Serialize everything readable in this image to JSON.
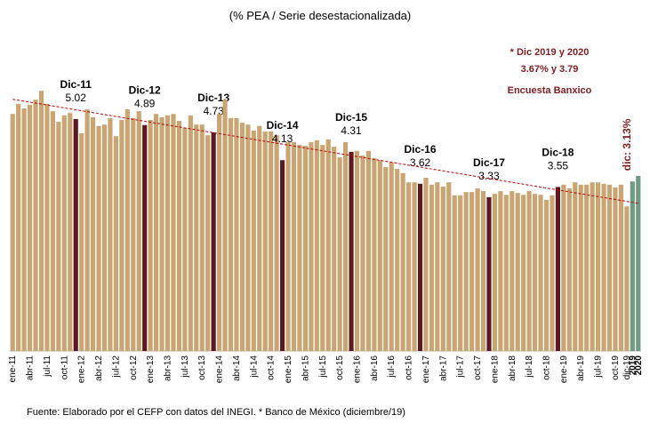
{
  "chart_data": {
    "type": "bar",
    "title": "(% PEA / Serie desestacionalizada)",
    "note": [
      "* Dic 2019 y 2020",
      "3.67% y 3.79",
      "Encuesta Banxico"
    ],
    "source": "Fuente: Elaborado por el CEFP con datos del INEGI.  * Banco de México (diciembre/19)",
    "categories": [
      "ene-11",
      null,
      null,
      "abr-11",
      null,
      null,
      "jul-11",
      null,
      null,
      "oct-11",
      null,
      null,
      "ene-12",
      null,
      null,
      "abr-12",
      null,
      null,
      "jul-12",
      null,
      null,
      "oct-12",
      null,
      null,
      "ene-13",
      null,
      null,
      "abr-13",
      null,
      null,
      "jul-13",
      null,
      null,
      "oct-13",
      null,
      null,
      "ene-14",
      null,
      null,
      "abr-14",
      null,
      null,
      "jul-14",
      null,
      null,
      "oct-14",
      null,
      null,
      "ene-15",
      null,
      null,
      "abr-15",
      null,
      null,
      "jul-15",
      null,
      null,
      "oct-15",
      null,
      null,
      "ene-16",
      null,
      null,
      "abr-16",
      null,
      null,
      "jul-16",
      null,
      null,
      "oct-16",
      null,
      null,
      "ene-17",
      null,
      null,
      "abr-17",
      null,
      null,
      "jul-17",
      null,
      null,
      "oct-17",
      null,
      null,
      "ene-18",
      null,
      null,
      "abr-18",
      null,
      null,
      "jul-18",
      null,
      null,
      "oct-18",
      null,
      null,
      "ene-19",
      null,
      null,
      "abr-19",
      null,
      null,
      "jul-19",
      null,
      null,
      "oct-19",
      null,
      "dic-19",
      "2019",
      "2020"
    ],
    "values": [
      5.13,
      5.35,
      5.25,
      5.33,
      5.44,
      5.63,
      5.35,
      5.19,
      4.96,
      5.1,
      5.15,
      5.02,
      4.71,
      5.23,
      5.06,
      4.87,
      4.9,
      5.04,
      4.65,
      5.0,
      5.23,
      5.04,
      5.19,
      4.89,
      5.0,
      5.13,
      5.06,
      5.1,
      5.13,
      4.98,
      4.83,
      5.1,
      4.9,
      4.9,
      4.67,
      4.73,
      5.13,
      5.44,
      5.04,
      5.04,
      4.94,
      4.9,
      4.77,
      4.87,
      4.75,
      4.75,
      4.67,
      4.13,
      4.52,
      4.52,
      4.46,
      4.44,
      4.52,
      4.56,
      4.46,
      4.58,
      4.42,
      4.19,
      4.52,
      4.31,
      4.33,
      4.23,
      4.33,
      4.17,
      4.13,
      3.98,
      4.08,
      3.94,
      3.85,
      3.65,
      3.65,
      3.62,
      3.75,
      3.6,
      3.65,
      3.56,
      3.65,
      3.37,
      3.37,
      3.44,
      3.44,
      3.52,
      3.46,
      3.33,
      3.4,
      3.46,
      3.38,
      3.46,
      3.42,
      3.38,
      3.46,
      3.4,
      3.38,
      3.27,
      3.37,
      3.55,
      3.6,
      3.52,
      3.65,
      3.6,
      3.6,
      3.65,
      3.65,
      3.62,
      3.6,
      3.54,
      3.6,
      3.13,
      3.67,
      3.79
    ],
    "point_names": [
      null,
      null,
      null,
      null,
      null,
      null,
      null,
      null,
      null,
      null,
      null,
      "Dic-11",
      null,
      null,
      null,
      null,
      null,
      null,
      null,
      null,
      null,
      null,
      null,
      "Dic-12",
      null,
      null,
      null,
      null,
      null,
      null,
      null,
      null,
      null,
      null,
      null,
      "Dic-13",
      null,
      null,
      null,
      null,
      null,
      null,
      null,
      null,
      null,
      null,
      null,
      "Dic-14",
      null,
      null,
      null,
      null,
      null,
      null,
      null,
      null,
      null,
      null,
      null,
      "Dic-15",
      null,
      null,
      null,
      null,
      null,
      null,
      null,
      null,
      null,
      null,
      null,
      "Dic-16",
      null,
      null,
      null,
      null,
      null,
      null,
      null,
      null,
      null,
      null,
      null,
      "Dic-17",
      null,
      null,
      null,
      null,
      null,
      null,
      null,
      null,
      null,
      null,
      null,
      "Dic-18",
      null,
      null,
      null,
      null,
      null,
      null,
      null,
      null,
      null,
      null,
      null,
      null,
      null,
      null
    ],
    "value_labels": [
      null,
      null,
      null,
      null,
      null,
      null,
      null,
      null,
      null,
      null,
      null,
      "5.02",
      null,
      null,
      null,
      null,
      null,
      null,
      null,
      null,
      null,
      null,
      null,
      "4.89",
      null,
      null,
      null,
      null,
      null,
      null,
      null,
      null,
      null,
      null,
      null,
      "4.73",
      null,
      null,
      null,
      null,
      null,
      null,
      null,
      null,
      null,
      null,
      null,
      "4.13",
      null,
      null,
      null,
      null,
      null,
      null,
      null,
      null,
      null,
      null,
      null,
      "4.31",
      null,
      null,
      null,
      null,
      null,
      null,
      null,
      null,
      null,
      null,
      null,
      "3.62",
      null,
      null,
      null,
      null,
      null,
      null,
      null,
      null,
      null,
      null,
      null,
      "3.33",
      null,
      null,
      null,
      null,
      null,
      null,
      null,
      null,
      null,
      null,
      null,
      "3.55",
      null,
      null,
      null,
      null,
      null,
      null,
      null,
      null,
      null,
      null,
      null,
      "dic: 3.13%",
      null,
      null
    ],
    "colors": [
      "#c8a572",
      "#c8a572",
      "#c8a572",
      "#c8a572",
      "#c8a572",
      "#c8a572",
      "#c8a572",
      "#c8a572",
      "#c8a572",
      "#c8a572",
      "#c8a572",
      "#5a1a1f",
      "#c8a572",
      "#c8a572",
      "#c8a572",
      "#c8a572",
      "#c8a572",
      "#c8a572",
      "#c8a572",
      "#c8a572",
      "#c8a572",
      "#c8a572",
      "#c8a572",
      "#5a1a1f",
      "#c8a572",
      "#c8a572",
      "#c8a572",
      "#c8a572",
      "#c8a572",
      "#c8a572",
      "#c8a572",
      "#c8a572",
      "#c8a572",
      "#c8a572",
      "#c8a572",
      "#5a1a1f",
      "#c8a572",
      "#c8a572",
      "#c8a572",
      "#c8a572",
      "#c8a572",
      "#c8a572",
      "#c8a572",
      "#c8a572",
      "#c8a572",
      "#c8a572",
      "#c8a572",
      "#5a1a1f",
      "#c8a572",
      "#c8a572",
      "#c8a572",
      "#c8a572",
      "#c8a572",
      "#c8a572",
      "#c8a572",
      "#c8a572",
      "#c8a572",
      "#c8a572",
      "#c8a572",
      "#5a1a1f",
      "#c8a572",
      "#c8a572",
      "#c8a572",
      "#c8a572",
      "#c8a572",
      "#c8a572",
      "#c8a572",
      "#c8a572",
      "#c8a572",
      "#c8a572",
      "#c8a572",
      "#5a1a1f",
      "#c8a572",
      "#c8a572",
      "#c8a572",
      "#c8a572",
      "#c8a572",
      "#c8a572",
      "#c8a572",
      "#c8a572",
      "#c8a572",
      "#c8a572",
      "#c8a572",
      "#5a1a1f",
      "#c8a572",
      "#c8a572",
      "#c8a572",
      "#c8a572",
      "#c8a572",
      "#c8a572",
      "#c8a572",
      "#c8a572",
      "#c8a572",
      "#c8a572",
      "#c8a572",
      "#5a1a1f",
      "#c8a572",
      "#c8a572",
      "#c8a572",
      "#c8a572",
      "#c8a572",
      "#c8a572",
      "#c8a572",
      "#c8a572",
      "#c8a572",
      "#c8a572",
      "#c8a572",
      "#c8a572",
      "#6f9b83",
      "#6f9b83"
    ],
    "ylim": [
      0,
      6
    ],
    "trendline_color": "#c00000"
  }
}
